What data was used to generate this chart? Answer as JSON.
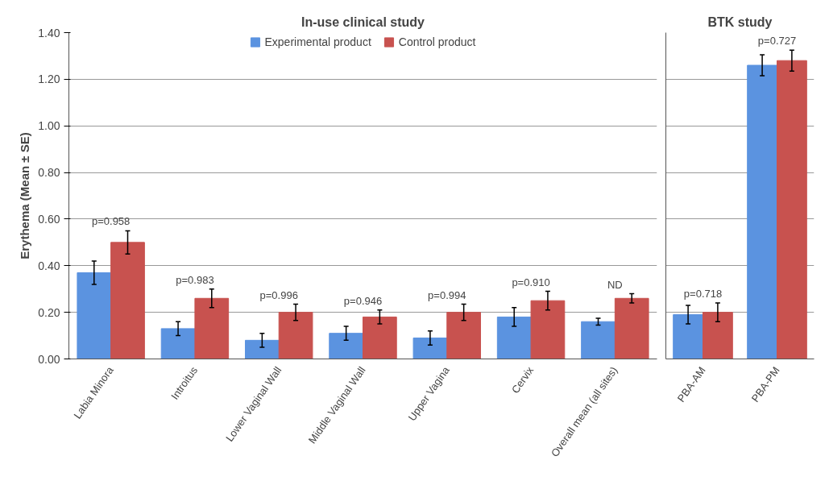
{
  "chart_data": [
    {
      "type": "bar",
      "title": "In-use clinical study",
      "ylabel": "Erythema (Mean ± SE)",
      "categories": [
        "Labia Minora",
        "Introitus",
        "Lower Vaginal Wall",
        "Middle Vaginal Wall",
        "Upper Vagina",
        "Cervix",
        "Overall mean (all sites)"
      ],
      "series": [
        {
          "name": "Experimental product",
          "color": "#5b93e0",
          "values": [
            0.37,
            0.13,
            0.08,
            0.11,
            0.09,
            0.18,
            0.16
          ],
          "errors": [
            0.05,
            0.03,
            0.03,
            0.03,
            0.03,
            0.04,
            0.015
          ]
        },
        {
          "name": "Control product",
          "color": "#c8524f",
          "values": [
            0.5,
            0.26,
            0.2,
            0.18,
            0.2,
            0.25,
            0.26
          ],
          "errors": [
            0.05,
            0.04,
            0.035,
            0.03,
            0.035,
            0.04,
            0.02
          ]
        }
      ],
      "ylim": [
        0,
        1.4
      ],
      "yticks": [
        {
          "value": 0,
          "label": "0.00"
        },
        {
          "value": 0.2,
          "label": "0.20"
        },
        {
          "value": 0.4,
          "label": "0.40"
        },
        {
          "value": 0.6,
          "label": "0.60"
        },
        {
          "value": 0.8,
          "label": "0.80"
        },
        {
          "value": 1.0,
          "label": "1.00"
        },
        {
          "value": 1.2,
          "label": "1.20"
        },
        {
          "value": 1.4,
          "label": "1.40"
        }
      ],
      "grid": "y",
      "legend": "top",
      "annotations": [
        "p=0.958",
        "p=0.983",
        "p=0.996",
        "p=0.946",
        "p=0.994",
        "p=0.910",
        "ND"
      ]
    },
    {
      "type": "bar",
      "title": "BTK study",
      "categories": [
        "PBA-AM",
        "PBA-PM"
      ],
      "series": [
        {
          "color": "#5b93e0",
          "values": [
            0.19,
            1.26
          ],
          "errors": [
            0.04,
            0.045
          ]
        },
        {
          "color": "#c8524f",
          "values": [
            0.2,
            1.28
          ],
          "errors": [
            0.04,
            0.045
          ]
        }
      ],
      "ylim": [
        0,
        1.4
      ],
      "yticks": [
        {
          "value": 0,
          "label": null
        },
        {
          "value": 0.2,
          "label": null
        },
        {
          "value": 0.4,
          "label": null
        },
        {
          "value": 0.6,
          "label": null
        },
        {
          "value": 0.8,
          "label": null
        },
        {
          "value": 1.0,
          "label": null
        },
        {
          "value": 1.2,
          "label": null
        },
        {
          "value": 1.4,
          "label": null
        }
      ],
      "grid": "y",
      "tick_labels": "x",
      "annotations": [
        "p=0.718",
        "p=0.727"
      ]
    }
  ]
}
